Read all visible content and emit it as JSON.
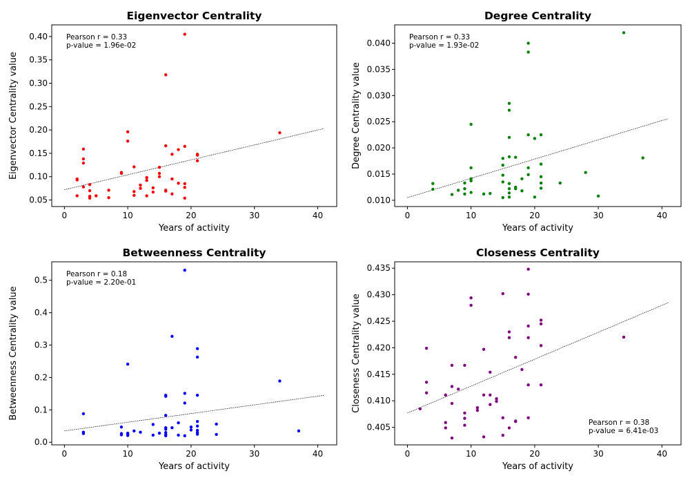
{
  "chart_data": [
    {
      "type": "scatter",
      "title": "Eigenvector Centrality",
      "xlabel": "Years of activity",
      "ylabel": "Eigenvector Centrality value",
      "xlim": [
        -2,
        43
      ],
      "ylim": [
        0.036,
        0.425
      ],
      "xticks": [
        0,
        10,
        20,
        30,
        40
      ],
      "xtick_labels": [
        "0",
        "10",
        "20",
        "30",
        "40"
      ],
      "yticks": [
        0.05,
        0.1,
        0.15,
        0.2,
        0.25,
        0.3,
        0.35,
        0.4
      ],
      "ytick_labels": [
        "0.05",
        "0.10",
        "0.15",
        "0.20",
        "0.25",
        "0.30",
        "0.35",
        "0.40"
      ],
      "annotation": [
        "Pearson r = 0.33",
        "p-value = 1.96e-02"
      ],
      "annotation_position": "top-left",
      "color": "#ff0000",
      "trendline": {
        "x": [
          0,
          41
        ],
        "y": [
          0.072,
          0.203
        ]
      },
      "points": [
        [
          2,
          0.059
        ],
        [
          2,
          0.095
        ],
        [
          2,
          0.093
        ],
        [
          3,
          0.159
        ],
        [
          3,
          0.138
        ],
        [
          3,
          0.129
        ],
        [
          3,
          0.078
        ],
        [
          4,
          0.083
        ],
        [
          4,
          0.07
        ],
        [
          4,
          0.058
        ],
        [
          4,
          0.054
        ],
        [
          5,
          0.059
        ],
        [
          7,
          0.071
        ],
        [
          7,
          0.055
        ],
        [
          9,
          0.109
        ],
        [
          9,
          0.107
        ],
        [
          10,
          0.196
        ],
        [
          10,
          0.176
        ],
        [
          11,
          0.121
        ],
        [
          11,
          0.068
        ],
        [
          11,
          0.06
        ],
        [
          12,
          0.082
        ],
        [
          12,
          0.075
        ],
        [
          13,
          0.098
        ],
        [
          13,
          0.092
        ],
        [
          13,
          0.059
        ],
        [
          14,
          0.076
        ],
        [
          14,
          0.067
        ],
        [
          15,
          0.12
        ],
        [
          15,
          0.107
        ],
        [
          15,
          0.1
        ],
        [
          16,
          0.318
        ],
        [
          16,
          0.166
        ],
        [
          16,
          0.071
        ],
        [
          16,
          0.069
        ],
        [
          17,
          0.148
        ],
        [
          17,
          0.095
        ],
        [
          17,
          0.063
        ],
        [
          18,
          0.158
        ],
        [
          18,
          0.086
        ],
        [
          19,
          0.405
        ],
        [
          19,
          0.165
        ],
        [
          19,
          0.085
        ],
        [
          19,
          0.077
        ],
        [
          19,
          0.054
        ],
        [
          21,
          0.148
        ],
        [
          21,
          0.146
        ],
        [
          21,
          0.134
        ],
        [
          34,
          0.194
        ]
      ]
    },
    {
      "type": "scatter",
      "title": "Degree Centrality",
      "xlabel": "Years of activity",
      "ylabel": "Degree Centrality value",
      "xlim": [
        -2,
        43
      ],
      "ylim": [
        0.0088,
        0.0435
      ],
      "xticks": [
        0,
        10,
        20,
        30,
        40
      ],
      "xtick_labels": [
        "0",
        "10",
        "20",
        "30",
        "40"
      ],
      "yticks": [
        0.01,
        0.015,
        0.02,
        0.025,
        0.03,
        0.035,
        0.04
      ],
      "ytick_labels": [
        "0.010",
        "0.015",
        "0.020",
        "0.025",
        "0.030",
        "0.035",
        "0.040"
      ],
      "annotation": [
        "Pearson r = 0.33",
        "p-value = 1.93e-02"
      ],
      "annotation_position": "top-left",
      "color": "#008000",
      "trendline": {
        "x": [
          0,
          41
        ],
        "y": [
          0.0105,
          0.0256
        ]
      },
      "points": [
        [
          4,
          0.0132
        ],
        [
          4,
          0.0121
        ],
        [
          7,
          0.0111
        ],
        [
          8,
          0.0119
        ],
        [
          9,
          0.0133
        ],
        [
          9,
          0.0122
        ],
        [
          9,
          0.0112
        ],
        [
          10,
          0.0245
        ],
        [
          10,
          0.0162
        ],
        [
          10,
          0.0141
        ],
        [
          10,
          0.0137
        ],
        [
          10,
          0.0115
        ],
        [
          12,
          0.0112
        ],
        [
          13,
          0.0113
        ],
        [
          15,
          0.018
        ],
        [
          15,
          0.0167
        ],
        [
          15,
          0.0148
        ],
        [
          15,
          0.0135
        ],
        [
          15,
          0.0105
        ],
        [
          16,
          0.0285
        ],
        [
          16,
          0.0272
        ],
        [
          16,
          0.022
        ],
        [
          16,
          0.0183
        ],
        [
          16,
          0.0132
        ],
        [
          16,
          0.0122
        ],
        [
          16,
          0.0114
        ],
        [
          16,
          0.0106
        ],
        [
          17,
          0.0182
        ],
        [
          17,
          0.0125
        ],
        [
          17,
          0.0122
        ],
        [
          18,
          0.0141
        ],
        [
          18,
          0.0118
        ],
        [
          19,
          0.04
        ],
        [
          19,
          0.0383
        ],
        [
          19,
          0.0225
        ],
        [
          19,
          0.0162
        ],
        [
          19,
          0.0149
        ],
        [
          20,
          0.0218
        ],
        [
          20,
          0.0106
        ],
        [
          21,
          0.0225
        ],
        [
          21,
          0.0169
        ],
        [
          21,
          0.0145
        ],
        [
          21,
          0.0133
        ],
        [
          21,
          0.0123
        ],
        [
          24,
          0.0133
        ],
        [
          28,
          0.0153
        ],
        [
          30,
          0.0108
        ],
        [
          34,
          0.042
        ],
        [
          37,
          0.0181
        ]
      ]
    },
    {
      "type": "scatter",
      "title": "Betweenness Centrality",
      "xlabel": "Years of activity",
      "ylabel": "Betweenness Centrality value",
      "xlim": [
        -2,
        43
      ],
      "ylim": [
        -0.008,
        0.557
      ],
      "xticks": [
        0,
        10,
        20,
        30,
        40
      ],
      "xtick_labels": [
        "0",
        "10",
        "20",
        "30",
        "40"
      ],
      "yticks": [
        0.0,
        0.1,
        0.2,
        0.3,
        0.4,
        0.5
      ],
      "ytick_labels": [
        "0.0",
        "0.1",
        "0.2",
        "0.3",
        "0.4",
        "0.5"
      ],
      "annotation": [
        "Pearson r = 0.18",
        "p-value = 2.20e-01"
      ],
      "annotation_position": "top-left",
      "color": "#0000ff",
      "trendline": {
        "x": [
          0,
          41
        ],
        "y": [
          0.035,
          0.145
        ]
      },
      "points": [
        [
          3,
          0.088
        ],
        [
          3,
          0.031
        ],
        [
          3,
          0.027
        ],
        [
          9,
          0.047
        ],
        [
          9,
          0.027
        ],
        [
          9,
          0.023
        ],
        [
          10,
          0.241
        ],
        [
          10,
          0.028
        ],
        [
          10,
          0.024
        ],
        [
          10,
          0.021
        ],
        [
          11,
          0.035
        ],
        [
          12,
          0.031
        ],
        [
          14,
          0.055
        ],
        [
          14,
          0.022
        ],
        [
          15,
          0.028
        ],
        [
          16,
          0.145
        ],
        [
          16,
          0.142
        ],
        [
          16,
          0.083
        ],
        [
          16,
          0.045
        ],
        [
          16,
          0.04
        ],
        [
          16,
          0.03
        ],
        [
          16,
          0.024
        ],
        [
          16,
          0.02
        ],
        [
          17,
          0.327
        ],
        [
          17,
          0.045
        ],
        [
          18,
          0.06
        ],
        [
          18,
          0.022
        ],
        [
          19,
          0.531
        ],
        [
          19,
          0.151
        ],
        [
          19,
          0.121
        ],
        [
          19,
          0.02
        ],
        [
          20,
          0.047
        ],
        [
          20,
          0.038
        ],
        [
          21,
          0.289
        ],
        [
          21,
          0.263
        ],
        [
          21,
          0.145
        ],
        [
          21,
          0.064
        ],
        [
          21,
          0.05
        ],
        [
          21,
          0.037
        ],
        [
          21,
          0.03
        ],
        [
          21,
          0.025
        ],
        [
          24,
          0.056
        ],
        [
          24,
          0.024
        ],
        [
          34,
          0.189
        ],
        [
          37,
          0.035
        ]
      ]
    },
    {
      "type": "scatter",
      "title": "Closeness Centrality",
      "xlabel": "Years of activity",
      "ylabel": "Closeness Centrality value",
      "xlim": [
        -2,
        43
      ],
      "ylim": [
        0.4017,
        0.4362
      ],
      "xticks": [
        0,
        10,
        20,
        30,
        40
      ],
      "xtick_labels": [
        "0",
        "10",
        "20",
        "30",
        "40"
      ],
      "yticks": [
        0.405,
        0.41,
        0.415,
        0.42,
        0.425,
        0.43,
        0.435
      ],
      "ytick_labels": [
        "0.405",
        "0.410",
        "0.415",
        "0.420",
        "0.425",
        "0.430",
        "0.435"
      ],
      "annotation": [
        "Pearson r = 0.38",
        "p-value = 6.41e-03"
      ],
      "annotation_position": "bottom-right",
      "color": "#800080",
      "trendline": {
        "x": [
          0,
          41
        ],
        "y": [
          0.4077,
          0.4285
        ]
      },
      "points": [
        [
          2,
          0.4085
        ],
        [
          3,
          0.4199
        ],
        [
          3,
          0.4135
        ],
        [
          3,
          0.4115
        ],
        [
          6,
          0.4111
        ],
        [
          6,
          0.4059
        ],
        [
          6,
          0.4049
        ],
        [
          7,
          0.4167
        ],
        [
          7,
          0.4127
        ],
        [
          7,
          0.4095
        ],
        [
          7,
          0.403
        ],
        [
          8,
          0.4122
        ],
        [
          9,
          0.4167
        ],
        [
          9,
          0.4077
        ],
        [
          9,
          0.4067
        ],
        [
          9,
          0.4054
        ],
        [
          10,
          0.4294
        ],
        [
          10,
          0.428
        ],
        [
          11,
          0.4087
        ],
        [
          11,
          0.4082
        ],
        [
          12,
          0.4197
        ],
        [
          12,
          0.4111
        ],
        [
          12,
          0.4032
        ],
        [
          13,
          0.4154
        ],
        [
          13,
          0.4111
        ],
        [
          13,
          0.4093
        ],
        [
          14,
          0.4104
        ],
        [
          14,
          0.4099
        ],
        [
          15,
          0.4302
        ],
        [
          15,
          0.4068
        ],
        [
          15,
          0.4035
        ],
        [
          16,
          0.423
        ],
        [
          16,
          0.4219
        ],
        [
          16,
          0.4049
        ],
        [
          17,
          0.4182
        ],
        [
          17,
          0.4062
        ],
        [
          17,
          0.4061
        ],
        [
          18,
          0.4159
        ],
        [
          19,
          0.4348
        ],
        [
          19,
          0.4301
        ],
        [
          19,
          0.4241
        ],
        [
          19,
          0.4219
        ],
        [
          19,
          0.413
        ],
        [
          19,
          0.4068
        ],
        [
          21,
          0.4252
        ],
        [
          21,
          0.4245
        ],
        [
          21,
          0.4204
        ],
        [
          21,
          0.413
        ],
        [
          34,
          0.422
        ]
      ]
    }
  ]
}
